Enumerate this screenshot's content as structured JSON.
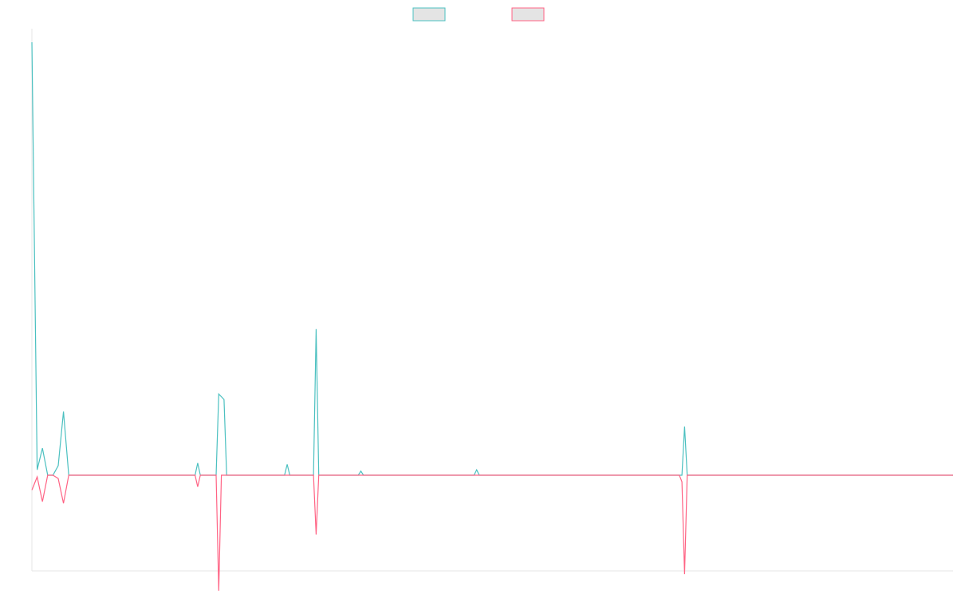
{
  "chart_data": {
    "type": "line",
    "title": "",
    "xlabel": "",
    "ylabel": "",
    "grid": false,
    "legend_placement": "top-center",
    "xlim": [
      0,
      175
    ],
    "ylim": [
      -0.58,
      3.3
    ],
    "series": [
      {
        "color": "#4bc0c0",
        "legend_fill": "#e4e4e4",
        "points": [
          [
            0,
            3.2
          ],
          [
            1,
            0.04
          ],
          [
            2,
            0.2
          ],
          [
            3,
            0
          ],
          [
            4,
            0
          ],
          [
            5,
            0.07
          ],
          [
            6,
            0.47
          ],
          [
            7,
            0
          ],
          [
            31,
            0
          ],
          [
            31.5,
            0.09
          ],
          [
            32,
            0
          ],
          [
            35,
            0
          ],
          [
            35.5,
            0.6
          ],
          [
            36.5,
            0.56
          ],
          [
            37,
            0
          ],
          [
            48,
            0
          ],
          [
            48.5,
            0.08
          ],
          [
            49,
            0
          ],
          [
            53.5,
            0
          ],
          [
            54,
            1.08
          ],
          [
            54.5,
            0
          ],
          [
            62,
            0
          ],
          [
            62.5,
            0.03
          ],
          [
            63,
            0
          ],
          [
            84,
            0
          ],
          [
            84.5,
            0.04
          ],
          [
            85,
            0
          ],
          [
            123.5,
            0
          ],
          [
            124,
            0.36
          ],
          [
            124.5,
            0
          ],
          [
            175,
            0
          ]
        ]
      },
      {
        "color": "#ff6384",
        "legend_fill": "#e4e4e4",
        "points": [
          [
            0,
            -0.09
          ],
          [
            1,
            -0.01
          ],
          [
            2,
            -0.16
          ],
          [
            3,
            0
          ],
          [
            4,
            0
          ],
          [
            5,
            -0.02
          ],
          [
            6,
            -0.17
          ],
          [
            7,
            0
          ],
          [
            31,
            0
          ],
          [
            31.5,
            -0.07
          ],
          [
            32,
            0
          ],
          [
            35,
            0
          ],
          [
            35.5,
            -0.7
          ],
          [
            36,
            0
          ],
          [
            53.5,
            0
          ],
          [
            54,
            -0.36
          ],
          [
            54.5,
            0
          ],
          [
            123,
            0
          ],
          [
            123.5,
            -0.04
          ],
          [
            124,
            -0.6
          ],
          [
            124.5,
            0
          ],
          [
            175,
            0
          ]
        ]
      }
    ]
  }
}
